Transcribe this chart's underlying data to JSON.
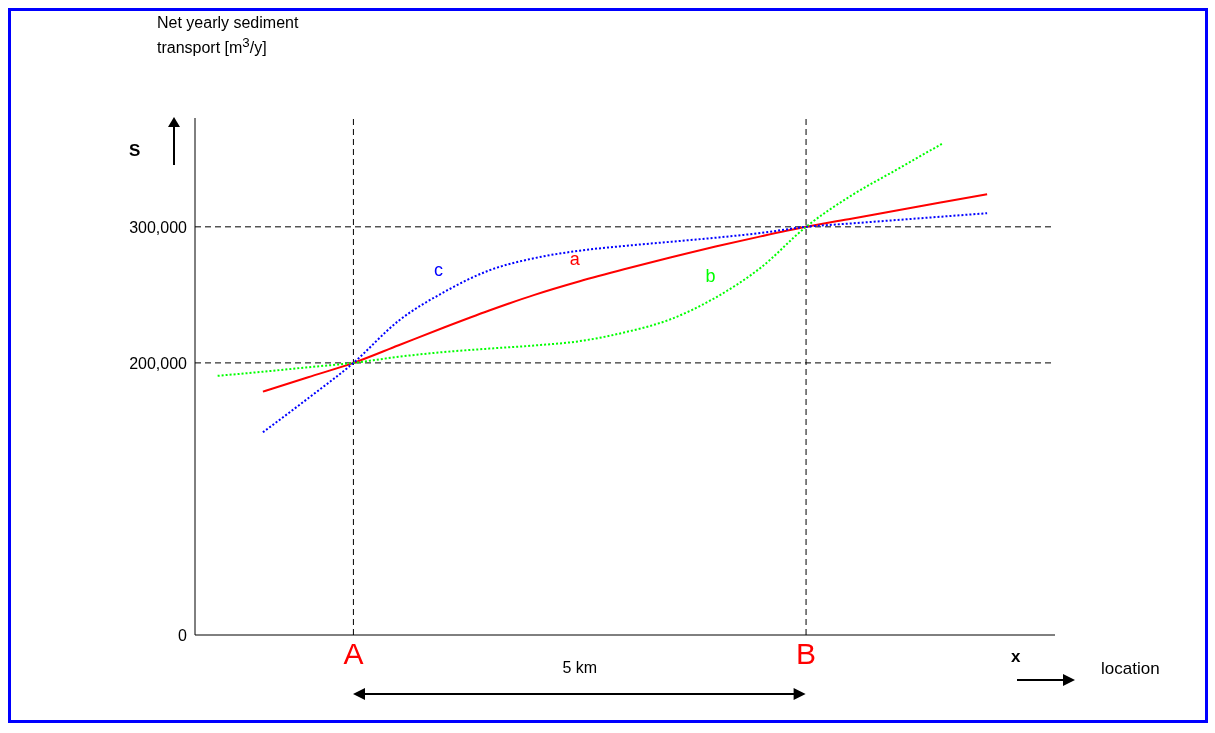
{
  "chart_data": {
    "type": "line",
    "ylabel": "Net yearly sediment transport [m$^{3}$/y]",
    "xlabel": "location",
    "annotations": [
      "S",
      "x",
      "5 km"
    ],
    "categories": [
      null,
      null,
      null,
      "A",
      null,
      null,
      null,
      null,
      null,
      null,
      null,
      null,
      null,
      "B",
      null,
      null,
      null,
      null,
      null
    ],
    "ylim": [
      0,
      380000
    ],
    "yticks": [
      0,
      {
        "value": 200000,
        "label": "200,000"
      },
      {
        "value": 300000,
        "label": "300,000"
      }
    ],
    "grid": false,
    "legend": false,
    "marker": "none",
    "ref_lines": [
      {
        "axis": "y",
        "value": 200000,
        "line_style": "dashed",
        "color": "#000000"
      },
      {
        "axis": "y",
        "value": 300000,
        "line_style": "dashed",
        "color": "#000000"
      },
      {
        "axis": "x",
        "value": "A",
        "line_style": "dashed",
        "color": "#000000"
      },
      {
        "axis": "x",
        "value": "B",
        "line_style": "dashed",
        "color": "#000000"
      }
    ],
    "series": [
      {
        "name": "a",
        "color": "#ff0000",
        "line_style": "solid",
        "values": [
          null,
          178900,
          189500,
          200000,
          213000,
          226000,
          238500,
          250000,
          260000,
          269000,
          277500,
          285500,
          293000,
          300000,
          306000,
          312000,
          318000,
          324000,
          null
        ]
      },
      {
        "name": "b",
        "color": "#00ff00",
        "line_style": "dotted",
        "values": [
          190500,
          193500,
          196800,
          200000,
          204500,
          208000,
          210500,
          212800,
          216000,
          222500,
          232000,
          248000,
          270000,
          300000,
          323000,
          342000,
          361000,
          null,
          null
        ]
      },
      {
        "name": "c",
        "color": "#0000ff",
        "line_style": "dotted",
        "values": [
          null,
          149000,
          174000,
          200000,
          231000,
          252000,
          268000,
          277000,
          282500,
          286000,
          289000,
          292000,
          295500,
          300000,
          302500,
          305000,
          307500,
          310000,
          null
        ]
      }
    ]
  }
}
